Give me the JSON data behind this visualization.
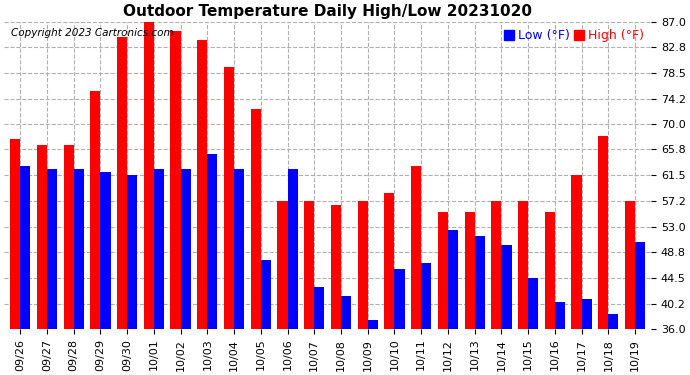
{
  "title": "Outdoor Temperature Daily High/Low 20231020",
  "copyright": "Copyright 2023 Cartronics.com",
  "legend_low": "Low",
  "legend_high": "High",
  "legend_unit": "(°F)",
  "dates": [
    "09/26",
    "09/27",
    "09/28",
    "09/29",
    "09/30",
    "10/01",
    "10/02",
    "10/03",
    "10/04",
    "10/05",
    "10/06",
    "10/07",
    "10/08",
    "10/09",
    "10/10",
    "10/11",
    "10/12",
    "10/13",
    "10/14",
    "10/15",
    "10/16",
    "10/17",
    "10/18",
    "10/19"
  ],
  "highs": [
    67.5,
    66.5,
    66.5,
    75.5,
    84.5,
    87.0,
    85.5,
    84.0,
    79.5,
    72.5,
    57.2,
    57.2,
    56.5,
    57.2,
    58.5,
    63.0,
    55.5,
    55.5,
    57.2,
    57.2,
    55.5,
    61.5,
    68.0,
    57.2
  ],
  "lows": [
    63.0,
    62.5,
    62.5,
    62.0,
    61.5,
    62.5,
    62.5,
    65.0,
    62.5,
    47.5,
    62.5,
    43.0,
    41.5,
    37.5,
    46.0,
    47.0,
    52.5,
    51.5,
    50.0,
    44.5,
    40.5,
    41.0,
    38.5,
    50.5
  ],
  "bar_color_high": "#ff0000",
  "bar_color_low": "#0000ff",
  "bg_color": "#ffffff",
  "grid_color": "#b0b0b0",
  "yticks": [
    36.0,
    40.2,
    44.5,
    48.8,
    53.0,
    57.2,
    61.5,
    65.8,
    70.0,
    74.2,
    78.5,
    82.8,
    87.0
  ],
  "ybase": 36.0,
  "ylim": [
    36.0,
    87.0
  ],
  "title_fontsize": 11,
  "copyright_fontsize": 7.5,
  "legend_fontsize": 9,
  "tick_fontsize": 8
}
